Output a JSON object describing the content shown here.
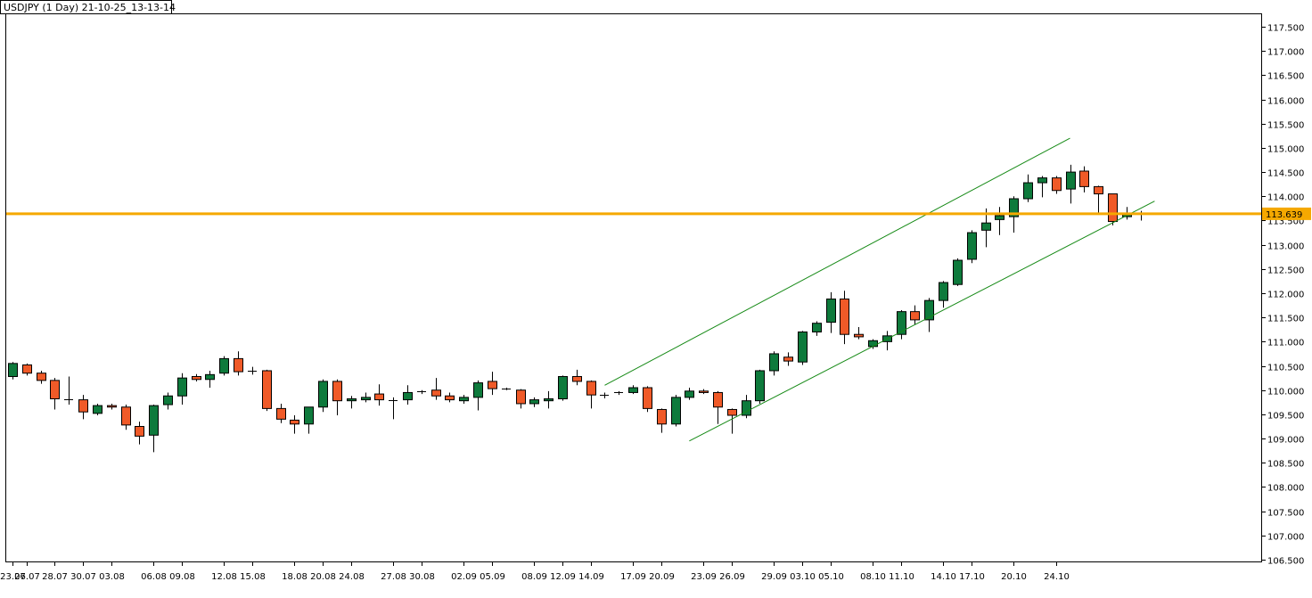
{
  "window": {
    "title": "USDJPY (1 Day) 21-10-25_13-13-14"
  },
  "colors": {
    "up_candle": "#0e7a3c",
    "down_candle": "#f05a28",
    "wick": "#000000",
    "channel": "#168a16",
    "level": "#f5a800",
    "price_tag_bg": "#f5a800",
    "frame": "#000000"
  },
  "chart_data": {
    "type": "candlestick",
    "symbol": "USDJPY",
    "timeframe": "1 Day",
    "ylim": [
      106.5,
      117.75
    ],
    "yticks": [
      "117.500",
      "117.000",
      "116.500",
      "116.000",
      "115.500",
      "115.000",
      "114.500",
      "114.000",
      "113.500",
      "113.000",
      "112.500",
      "112.000",
      "111.500",
      "111.000",
      "110.500",
      "110.000",
      "109.500",
      "109.000",
      "108.500",
      "108.000",
      "107.500",
      "107.000",
      "106.500"
    ],
    "xticks": [
      {
        "label": "23.07",
        "bar": 0
      },
      {
        "label": "26.07",
        "bar": 1
      },
      {
        "label": "28.07",
        "bar": 3
      },
      {
        "label": "30.07",
        "bar": 5
      },
      {
        "label": "03.08",
        "bar": 7
      },
      {
        "label": "06.08",
        "bar": 10
      },
      {
        "label": "09.08",
        "bar": 12
      },
      {
        "label": "12.08",
        "bar": 15
      },
      {
        "label": "15.08",
        "bar": 17
      },
      {
        "label": "18.08",
        "bar": 20
      },
      {
        "label": "20.08",
        "bar": 22
      },
      {
        "label": "24.08",
        "bar": 24
      },
      {
        "label": "27.08",
        "bar": 27
      },
      {
        "label": "30.08",
        "bar": 29
      },
      {
        "label": "02.09",
        "bar": 32
      },
      {
        "label": "05.09",
        "bar": 34
      },
      {
        "label": "08.09",
        "bar": 37
      },
      {
        "label": "12.09",
        "bar": 39
      },
      {
        "label": "14.09",
        "bar": 41
      },
      {
        "label": "17.09",
        "bar": 44
      },
      {
        "label": "20.09",
        "bar": 46
      },
      {
        "label": "23.09",
        "bar": 49
      },
      {
        "label": "26.09",
        "bar": 51
      },
      {
        "label": "29.09",
        "bar": 54
      },
      {
        "label": "03.10",
        "bar": 56
      },
      {
        "label": "05.10",
        "bar": 58
      },
      {
        "label": "08.10",
        "bar": 61
      },
      {
        "label": "11.10",
        "bar": 63
      },
      {
        "label": "14.10",
        "bar": 66
      },
      {
        "label": "17.10",
        "bar": 68
      },
      {
        "label": "20.10",
        "bar": 71
      },
      {
        "label": "24.10",
        "bar": 74
      }
    ],
    "candles": [
      {
        "o": 110.28,
        "h": 110.58,
        "l": 110.22,
        "c": 110.55
      },
      {
        "o": 110.52,
        "h": 110.55,
        "l": 110.3,
        "c": 110.35
      },
      {
        "o": 110.35,
        "h": 110.4,
        "l": 110.13,
        "c": 110.2
      },
      {
        "o": 110.2,
        "h": 110.25,
        "l": 109.6,
        "c": 109.82
      },
      {
        "o": 109.82,
        "h": 110.28,
        "l": 109.7,
        "c": 109.8
      },
      {
        "o": 109.8,
        "h": 109.9,
        "l": 109.4,
        "c": 109.55
      },
      {
        "o": 109.52,
        "h": 109.72,
        "l": 109.48,
        "c": 109.68
      },
      {
        "o": 109.68,
        "h": 109.72,
        "l": 109.6,
        "c": 109.65
      },
      {
        "o": 109.65,
        "h": 109.7,
        "l": 109.18,
        "c": 109.28
      },
      {
        "o": 109.25,
        "h": 109.35,
        "l": 108.88,
        "c": 109.05
      },
      {
        "o": 109.07,
        "h": 109.7,
        "l": 108.72,
        "c": 109.68
      },
      {
        "o": 109.7,
        "h": 109.95,
        "l": 109.6,
        "c": 109.88
      },
      {
        "o": 109.88,
        "h": 110.35,
        "l": 109.7,
        "c": 110.25
      },
      {
        "o": 110.28,
        "h": 110.33,
        "l": 110.18,
        "c": 110.22
      },
      {
        "o": 110.22,
        "h": 110.4,
        "l": 110.05,
        "c": 110.32
      },
      {
        "o": 110.35,
        "h": 110.7,
        "l": 110.3,
        "c": 110.65
      },
      {
        "o": 110.65,
        "h": 110.8,
        "l": 110.3,
        "c": 110.38
      },
      {
        "o": 110.38,
        "h": 110.48,
        "l": 110.32,
        "c": 110.4
      },
      {
        "o": 110.4,
        "h": 110.42,
        "l": 109.57,
        "c": 109.62
      },
      {
        "o": 109.62,
        "h": 109.72,
        "l": 109.32,
        "c": 109.4
      },
      {
        "o": 109.38,
        "h": 109.48,
        "l": 109.1,
        "c": 109.3
      },
      {
        "o": 109.3,
        "h": 109.65,
        "l": 109.1,
        "c": 109.65
      },
      {
        "o": 109.65,
        "h": 110.22,
        "l": 109.55,
        "c": 110.18
      },
      {
        "o": 110.18,
        "h": 110.22,
        "l": 109.48,
        "c": 109.78
      },
      {
        "o": 109.78,
        "h": 109.88,
        "l": 109.62,
        "c": 109.82
      },
      {
        "o": 109.8,
        "h": 109.95,
        "l": 109.75,
        "c": 109.85
      },
      {
        "o": 109.92,
        "h": 110.12,
        "l": 109.68,
        "c": 109.8
      },
      {
        "o": 109.8,
        "h": 109.85,
        "l": 109.4,
        "c": 109.8
      },
      {
        "o": 109.8,
        "h": 110.1,
        "l": 109.7,
        "c": 109.95
      },
      {
        "o": 109.95,
        "h": 110.0,
        "l": 109.92,
        "c": 109.97
      },
      {
        "o": 110.0,
        "h": 110.25,
        "l": 109.8,
        "c": 109.88
      },
      {
        "o": 109.88,
        "h": 109.95,
        "l": 109.75,
        "c": 109.8
      },
      {
        "o": 109.78,
        "h": 109.9,
        "l": 109.72,
        "c": 109.85
      },
      {
        "o": 109.85,
        "h": 110.2,
        "l": 109.58,
        "c": 110.15
      },
      {
        "o": 110.18,
        "h": 110.38,
        "l": 109.9,
        "c": 110.03
      },
      {
        "o": 110.03,
        "h": 110.05,
        "l": 110.0,
        "c": 110.02
      },
      {
        "o": 110.0,
        "h": 110.02,
        "l": 109.62,
        "c": 109.72
      },
      {
        "o": 109.72,
        "h": 109.85,
        "l": 109.65,
        "c": 109.8
      },
      {
        "o": 109.78,
        "h": 109.98,
        "l": 109.62,
        "c": 109.82
      },
      {
        "o": 109.82,
        "h": 110.3,
        "l": 109.78,
        "c": 110.28
      },
      {
        "o": 110.28,
        "h": 110.42,
        "l": 110.1,
        "c": 110.18
      },
      {
        "o": 110.18,
        "h": 110.2,
        "l": 109.62,
        "c": 109.9
      },
      {
        "o": 109.9,
        "h": 109.95,
        "l": 109.83,
        "c": 109.9
      },
      {
        "o": 109.95,
        "h": 109.98,
        "l": 109.9,
        "c": 109.96
      },
      {
        "o": 109.95,
        "h": 110.1,
        "l": 109.92,
        "c": 110.05
      },
      {
        "o": 110.05,
        "h": 110.08,
        "l": 109.55,
        "c": 109.62
      },
      {
        "o": 109.6,
        "h": 109.62,
        "l": 109.12,
        "c": 109.3
      },
      {
        "o": 109.3,
        "h": 109.9,
        "l": 109.25,
        "c": 109.85
      },
      {
        "o": 109.85,
        "h": 110.05,
        "l": 109.8,
        "c": 109.98
      },
      {
        "o": 109.98,
        "h": 110.02,
        "l": 109.92,
        "c": 109.95
      },
      {
        "o": 109.95,
        "h": 109.98,
        "l": 109.3,
        "c": 109.65
      },
      {
        "o": 109.6,
        "h": 109.62,
        "l": 109.1,
        "c": 109.48
      },
      {
        "o": 109.48,
        "h": 109.9,
        "l": 109.42,
        "c": 109.78
      },
      {
        "o": 109.78,
        "h": 110.42,
        "l": 109.72,
        "c": 110.4
      },
      {
        "o": 110.4,
        "h": 110.8,
        "l": 110.3,
        "c": 110.75
      },
      {
        "o": 110.68,
        "h": 110.78,
        "l": 110.5,
        "c": 110.6
      },
      {
        "o": 110.58,
        "h": 111.22,
        "l": 110.52,
        "c": 111.2
      },
      {
        "o": 111.2,
        "h": 111.42,
        "l": 111.12,
        "c": 111.38
      },
      {
        "o": 111.4,
        "h": 112.02,
        "l": 111.18,
        "c": 111.88
      },
      {
        "o": 111.88,
        "h": 112.05,
        "l": 110.95,
        "c": 111.15
      },
      {
        "o": 111.15,
        "h": 111.3,
        "l": 111.05,
        "c": 111.1
      },
      {
        "o": 110.9,
        "h": 111.05,
        "l": 110.85,
        "c": 111.02
      },
      {
        "o": 111.0,
        "h": 111.22,
        "l": 110.82,
        "c": 111.12
      },
      {
        "o": 111.15,
        "h": 111.65,
        "l": 111.05,
        "c": 111.62
      },
      {
        "o": 111.62,
        "h": 111.75,
        "l": 111.35,
        "c": 111.45
      },
      {
        "o": 111.45,
        "h": 111.9,
        "l": 111.2,
        "c": 111.85
      },
      {
        "o": 111.85,
        "h": 112.25,
        "l": 111.7,
        "c": 112.22
      },
      {
        "o": 112.18,
        "h": 112.72,
        "l": 112.15,
        "c": 112.68
      },
      {
        "o": 112.7,
        "h": 113.3,
        "l": 112.62,
        "c": 113.25
      },
      {
        "o": 113.3,
        "h": 113.75,
        "l": 112.95,
        "c": 113.45
      },
      {
        "o": 113.52,
        "h": 113.78,
        "l": 113.2,
        "c": 113.6
      },
      {
        "o": 113.58,
        "h": 114.0,
        "l": 113.25,
        "c": 113.95
      },
      {
        "o": 113.95,
        "h": 114.45,
        "l": 113.88,
        "c": 114.28
      },
      {
        "o": 114.28,
        "h": 114.42,
        "l": 113.98,
        "c": 114.38
      },
      {
        "o": 114.38,
        "h": 114.42,
        "l": 114.05,
        "c": 114.12
      },
      {
        "o": 114.15,
        "h": 114.65,
        "l": 113.85,
        "c": 114.5
      },
      {
        "o": 114.52,
        "h": 114.62,
        "l": 114.08,
        "c": 114.2
      },
      {
        "o": 114.2,
        "h": 114.22,
        "l": 113.62,
        "c": 114.05
      },
      {
        "o": 114.05,
        "h": 114.05,
        "l": 113.4,
        "c": 113.48
      },
      {
        "o": 113.58,
        "h": 113.78,
        "l": 113.52,
        "c": 113.62
      },
      {
        "o": 113.62,
        "h": 113.7,
        "l": 113.5,
        "c": 113.64
      }
    ],
    "channel_upper": {
      "start_bar": 42,
      "start_price": 110.1,
      "end_bar": 75,
      "end_price": 115.2
    },
    "channel_lower": {
      "start_bar": 48,
      "start_price": 108.95,
      "end_bar": 81,
      "end_price": 113.9
    },
    "level": {
      "price": 113.639,
      "label": "113.639"
    }
  }
}
